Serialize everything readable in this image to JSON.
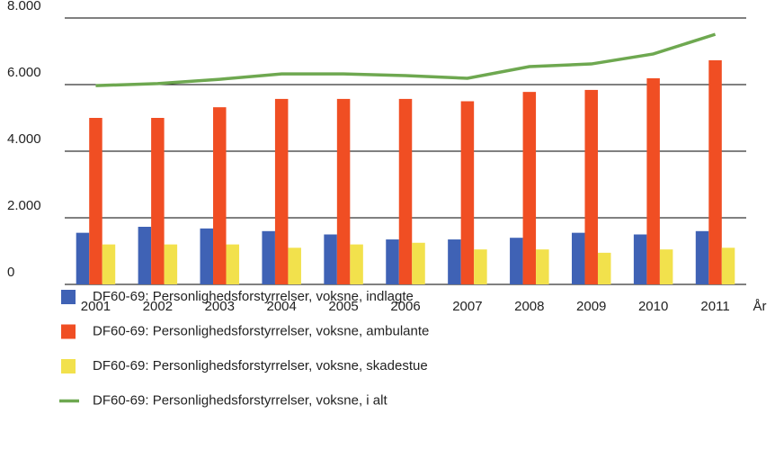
{
  "chart_data": {
    "type": "bar",
    "x_label": "År",
    "categories": [
      "2001",
      "2002",
      "2003",
      "2004",
      "2005",
      "2006",
      "2007",
      "2008",
      "2009",
      "2010",
      "2011"
    ],
    "series": [
      {
        "name": "DF60-69: Personlighedsforstyrrelser, voksne, indlagte",
        "color": "#3f62b5",
        "type": "bar",
        "values": [
          1550,
          1730,
          1680,
          1600,
          1500,
          1350,
          1350,
          1400,
          1550,
          1500,
          1600
        ]
      },
      {
        "name": "DF60-69: Personlighedsforstyrrelser, voksne, ambulante",
        "color": "#f04e23",
        "type": "bar",
        "values": [
          5000,
          5000,
          5320,
          5570,
          5570,
          5570,
          5500,
          5780,
          5840,
          6190,
          6730
        ]
      },
      {
        "name": "DF60-69: Personlighedsforstyrrelser, voksne, skadestue",
        "color": "#f2e14c",
        "type": "bar",
        "values": [
          1200,
          1200,
          1200,
          1100,
          1200,
          1250,
          1050,
          1050,
          950,
          1050,
          1100
        ]
      },
      {
        "name": "DF60-69: Personlighedsforstyrrelser, voksne, i alt",
        "color": "#6ea850",
        "type": "line",
        "values": [
          5970,
          6030,
          6160,
          6320,
          6320,
          6270,
          6190,
          6540,
          6620,
          6920,
          7510
        ]
      }
    ],
    "ylim": [
      0,
      8000
    ],
    "yticks": [
      0,
      {
        "value": 2000,
        "label": "2.000"
      },
      {
        "value": 4000,
        "label": "4.000"
      },
      {
        "value": 6000,
        "label": "6.000"
      },
      {
        "value": 8000,
        "label": "8.000"
      }
    ],
    "grid": true
  }
}
